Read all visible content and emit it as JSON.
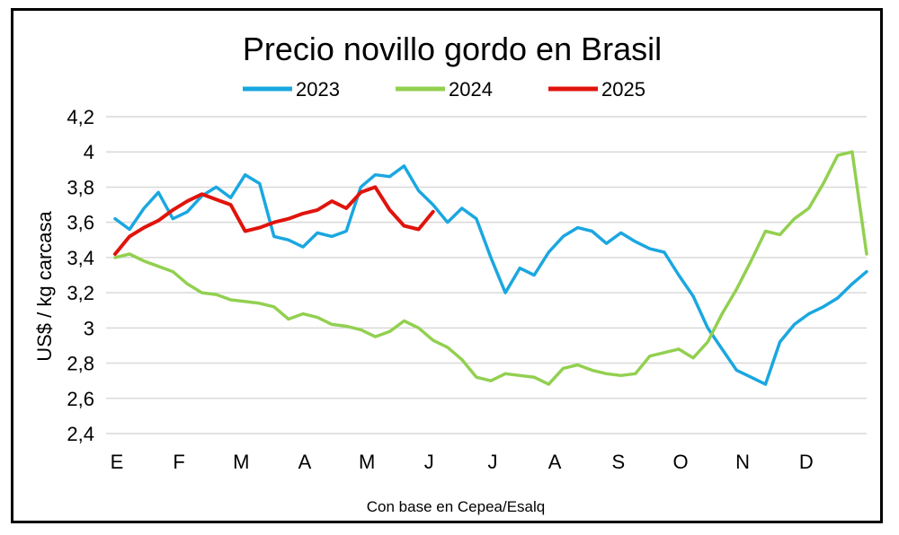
{
  "chart_data": {
    "type": "line",
    "title": "Precio novillo gordo en Brasil",
    "ylabel": "US$ / kg carcasa",
    "xlabel": "",
    "source_note": "Con base en Cepea/Esalq",
    "ylim": [
      2.4,
      4.2
    ],
    "y_ticks": [
      "2,4",
      "2,6",
      "2,8",
      "3",
      "3,2",
      "3,4",
      "3,6",
      "3,8",
      "4",
      "4,2"
    ],
    "categories": [
      "E",
      "F",
      "M",
      "A",
      "M",
      "J",
      "J",
      "A",
      "S",
      "O",
      "N",
      "D"
    ],
    "x_unit": "week of year",
    "legend_position": "top",
    "grid": "horizontal",
    "series": [
      {
        "name": "2023",
        "color": "#1aa7e0",
        "x": [
          0,
          1,
          2,
          3,
          4,
          5,
          6,
          7,
          8,
          9,
          10,
          11,
          12,
          13,
          14,
          15,
          16,
          17,
          18,
          19,
          20,
          21,
          22,
          23,
          24,
          25,
          26,
          27,
          28,
          29,
          30,
          31,
          32,
          33,
          34,
          35,
          36,
          37,
          38,
          39,
          40,
          41,
          42,
          43,
          44,
          45,
          46,
          47,
          48,
          49,
          50,
          51,
          52
        ],
        "values": [
          3.62,
          3.56,
          3.68,
          3.77,
          3.62,
          3.66,
          3.75,
          3.8,
          3.74,
          3.87,
          3.82,
          3.52,
          3.5,
          3.46,
          3.54,
          3.52,
          3.55,
          3.8,
          3.87,
          3.86,
          3.92,
          3.78,
          3.7,
          3.6,
          3.68,
          3.62,
          3.4,
          3.2,
          3.34,
          3.3,
          3.43,
          3.52,
          3.57,
          3.55,
          3.48,
          3.54,
          3.49,
          3.45,
          3.43,
          3.3,
          3.18,
          3.0,
          2.88,
          2.76,
          2.72,
          2.68,
          2.92,
          3.02,
          3.08,
          3.12,
          3.17,
          3.25,
          3.32
        ]
      },
      {
        "name": "2024",
        "color": "#92d050",
        "x": [
          0,
          1,
          2,
          3,
          4,
          5,
          6,
          7,
          8,
          9,
          10,
          11,
          12,
          13,
          14,
          15,
          16,
          17,
          18,
          19,
          20,
          21,
          22,
          23,
          24,
          25,
          26,
          27,
          28,
          29,
          30,
          31,
          32,
          33,
          34,
          35,
          36,
          37,
          38,
          39,
          40,
          41,
          42,
          43,
          44,
          45,
          46,
          47,
          48,
          49,
          50,
          51,
          52
        ],
        "values": [
          3.4,
          3.42,
          3.38,
          3.35,
          3.32,
          3.25,
          3.2,
          3.19,
          3.16,
          3.15,
          3.14,
          3.12,
          3.05,
          3.08,
          3.06,
          3.02,
          3.01,
          2.99,
          2.95,
          2.98,
          3.04,
          3.0,
          2.93,
          2.89,
          2.82,
          2.72,
          2.7,
          2.74,
          2.73,
          2.72,
          2.68,
          2.77,
          2.79,
          2.76,
          2.74,
          2.73,
          2.74,
          2.84,
          2.86,
          2.88,
          2.83,
          2.92,
          3.08,
          3.22,
          3.38,
          3.55,
          3.53,
          3.62,
          3.68,
          3.82,
          3.98,
          4.0,
          3.42
        ]
      },
      {
        "name": "2025",
        "color": "#e0140c",
        "x": [
          0,
          1,
          2,
          3,
          4,
          5,
          6,
          7,
          8,
          9,
          10,
          11,
          12,
          13,
          14,
          15,
          16,
          17,
          18,
          19,
          20,
          21,
          22
        ],
        "values": [
          3.42,
          3.52,
          3.57,
          3.61,
          3.67,
          3.72,
          3.76,
          3.73,
          3.7,
          3.55,
          3.57,
          3.6,
          3.62,
          3.65,
          3.67,
          3.72,
          3.68,
          3.77,
          3.8,
          3.67,
          3.58,
          3.56,
          3.66
        ]
      }
    ]
  }
}
